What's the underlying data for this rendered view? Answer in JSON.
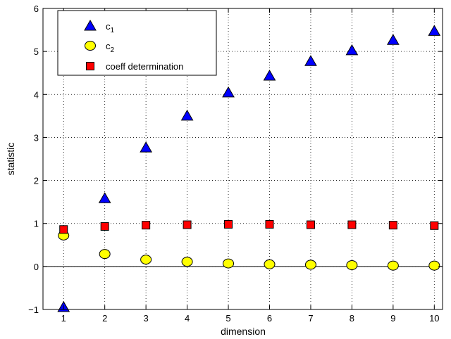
{
  "chart_data": {
    "type": "scatter",
    "xlabel": "dimension",
    "ylabel": "statistic",
    "xlim": [
      0.5,
      10.2
    ],
    "ylim": [
      -1,
      6
    ],
    "xticks": [
      1,
      2,
      3,
      4,
      5,
      6,
      7,
      8,
      9,
      10
    ],
    "yticks": [
      -1,
      0,
      1,
      2,
      3,
      4,
      5,
      6
    ],
    "ytick_labels": [
      "−1",
      "0",
      "1",
      "2",
      "3",
      "4",
      "5",
      "6"
    ],
    "grid": true,
    "zero_line": true,
    "legend_position": "top-left",
    "x": [
      1,
      2,
      3,
      4,
      5,
      6,
      7,
      8,
      9,
      10
    ],
    "series": [
      {
        "name": "c1",
        "label_main": "c",
        "label_sub": "1",
        "marker": "triangle",
        "color": "#0000ff",
        "values": [
          -0.95,
          1.58,
          2.76,
          3.5,
          4.04,
          4.43,
          4.77,
          5.02,
          5.26,
          5.47
        ]
      },
      {
        "name": "c2",
        "label_main": "c",
        "label_sub": "2",
        "marker": "circle",
        "color": "#ffff00",
        "values": [
          0.72,
          0.29,
          0.16,
          0.11,
          0.07,
          0.05,
          0.04,
          0.03,
          0.02,
          0.02
        ]
      },
      {
        "name": "coeff determination",
        "label_main": "coeff determination",
        "label_sub": "",
        "marker": "square",
        "color": "#ff0000",
        "values": [
          0.86,
          0.93,
          0.96,
          0.97,
          0.98,
          0.98,
          0.97,
          0.97,
          0.96,
          0.95
        ]
      }
    ]
  }
}
